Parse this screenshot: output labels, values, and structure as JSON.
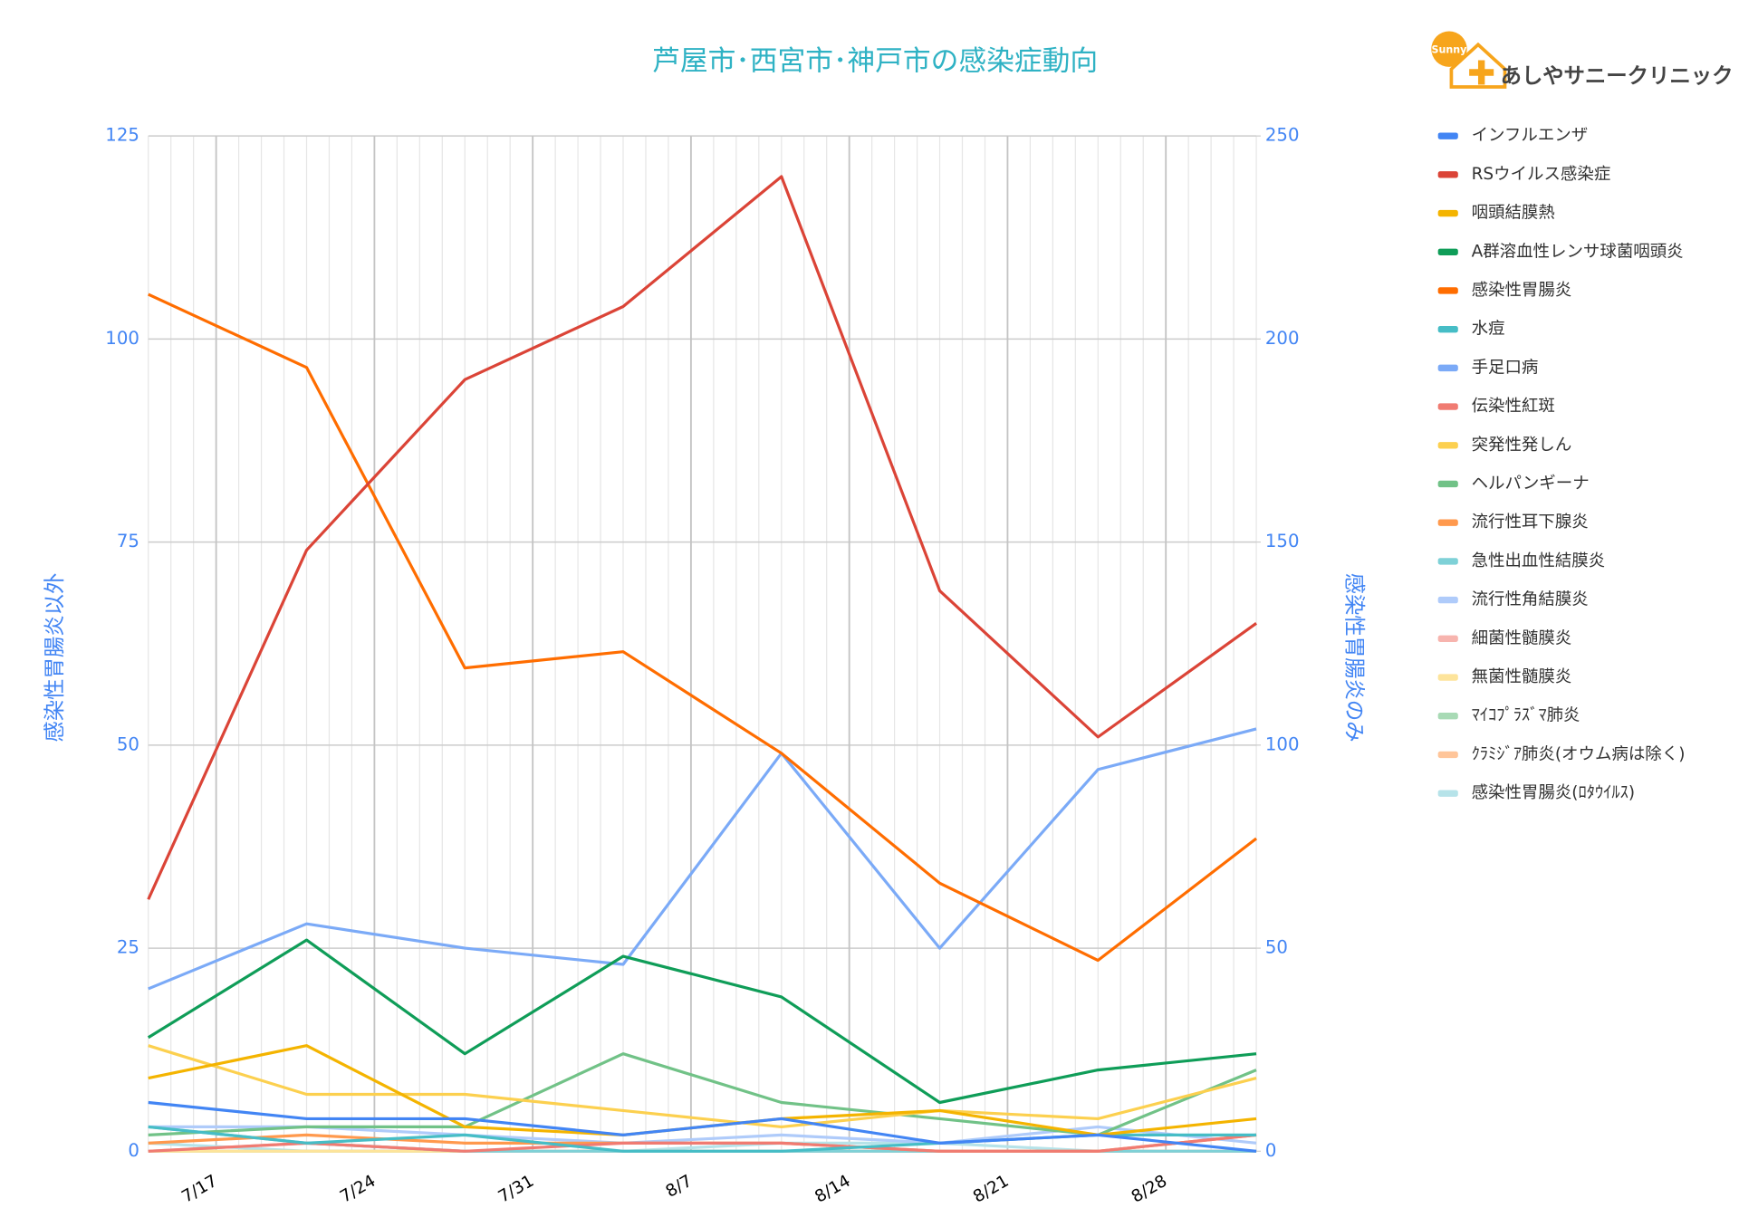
{
  "logo": {
    "badge": "Sunny",
    "name": "あしやサニークリニック"
  },
  "chart_data": {
    "type": "line",
    "title": "芦屋市･西宮市･神戸市の感染症動向",
    "y_label": "感染性胃腸炎以外",
    "y2_label": "感染性胃腸炎のみ",
    "x": [
      14,
      21,
      28,
      35,
      42,
      49,
      56,
      63
    ],
    "xlim": [
      14,
      63
    ],
    "xticks": [
      {
        "value": 17,
        "label": "7/17"
      },
      {
        "value": 24,
        "label": "7/24"
      },
      {
        "value": 31,
        "label": "7/31"
      },
      {
        "value": 38,
        "label": "8/7"
      },
      {
        "value": 45,
        "label": "8/14"
      },
      {
        "value": 52,
        "label": "8/21"
      },
      {
        "value": 59,
        "label": "8/28"
      }
    ],
    "ylim": [
      0,
      125
    ],
    "yticks": [
      0,
      25,
      50,
      75,
      100,
      125
    ],
    "y2lim": [
      0,
      250
    ],
    "y2ticks": [
      0,
      50,
      100,
      150,
      200,
      250
    ],
    "grid": true,
    "legend": "right",
    "series": [
      {
        "name": "インフルエンザ",
        "color": "#4285f4",
        "values": [
          6,
          4,
          4,
          2,
          4,
          1,
          2,
          0
        ]
      },
      {
        "name": "RSウイルス感染症",
        "color": "#db4437",
        "values": [
          31,
          74,
          95,
          104,
          120,
          69,
          51,
          65
        ]
      },
      {
        "name": "咽頭結膜熱",
        "color": "#f4b400",
        "values": [
          9,
          13,
          3,
          2,
          4,
          5,
          2,
          4
        ]
      },
      {
        "name": "A群溶血性レンサ球菌咽頭炎",
        "color": "#0f9d58",
        "values": [
          14,
          26,
          12,
          24,
          19,
          6,
          10,
          12
        ]
      },
      {
        "name": "感染性胃腸炎",
        "color": "#ff6d00",
        "axis": "y2",
        "values": [
          211,
          193,
          119,
          123,
          98,
          66,
          47,
          77
        ]
      },
      {
        "name": "水痘",
        "color": "#46bdc6",
        "values": [
          3,
          1,
          2,
          0,
          0,
          1,
          2,
          2
        ]
      },
      {
        "name": "手足口病",
        "color": "#7baaf7",
        "values": [
          20,
          28,
          25,
          23,
          49,
          25,
          47,
          52
        ]
      },
      {
        "name": "伝染性紅斑",
        "color": "#f07b72",
        "values": [
          0,
          1,
          0,
          1,
          1,
          0,
          0,
          2
        ]
      },
      {
        "name": "突発性発しん",
        "color": "#fcd04f",
        "values": [
          13,
          7,
          7,
          5,
          3,
          5,
          4,
          9
        ]
      },
      {
        "name": "ヘルパンギーナ",
        "color": "#71c287",
        "values": [
          2,
          3,
          3,
          12,
          6,
          4,
          2,
          10
        ]
      },
      {
        "name": "流行性耳下腺炎",
        "color": "#ff994d",
        "values": [
          1,
          2,
          1,
          1,
          1,
          0,
          0,
          2
        ]
      },
      {
        "name": "急性出血性結膜炎",
        "color": "#7ed1d7",
        "values": [
          3,
          1,
          0,
          0,
          0,
          0,
          0,
          0
        ]
      },
      {
        "name": "流行性角結膜炎",
        "color": "#afcbfa",
        "values": [
          3,
          3,
          2,
          1,
          2,
          1,
          3,
          1
        ]
      },
      {
        "name": "細菌性髄膜炎",
        "color": "#f7b4ae",
        "values": [
          0,
          1,
          0,
          0,
          0,
          0,
          0,
          0
        ]
      },
      {
        "name": "無菌性髄膜炎",
        "color": "#fde49b",
        "values": [
          0,
          0,
          0,
          0,
          0,
          0,
          0,
          0
        ]
      },
      {
        "name": "ﾏｲｺﾌﾟﾗｽﾞﾏ肺炎",
        "color": "#a8dab5",
        "values": [
          0,
          0,
          0,
          0,
          0,
          0,
          0,
          0
        ]
      },
      {
        "name": "ｸﾗﾐｼﾞｱ肺炎(オウム病は除く)",
        "color": "#ffc599",
        "values": [
          0,
          0,
          0,
          0,
          0,
          0,
          0,
          0
        ]
      },
      {
        "name": "感染性胃腸炎(ﾛﾀｳｲﾙｽ)",
        "color": "#b6e3e9",
        "values": [
          1,
          0,
          0,
          0,
          1,
          1,
          0,
          0
        ]
      }
    ]
  }
}
